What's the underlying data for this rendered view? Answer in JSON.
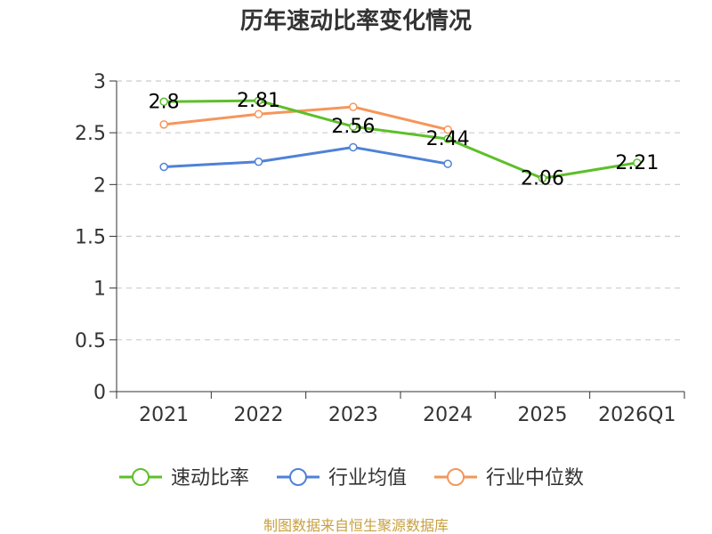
{
  "chart_data": {
    "type": "line",
    "title": "历年速动比率变化情况",
    "categories": [
      "2021",
      "2022",
      "2023",
      "2024",
      "2025",
      "2026Q1"
    ],
    "ylim": [
      0,
      3
    ],
    "yticks": [
      "0",
      "0.5",
      "1",
      "1.5",
      "2",
      "2.5",
      "3"
    ],
    "ytick_values": [
      0,
      0.5,
      1,
      1.5,
      2,
      2.5,
      3
    ],
    "grid": true,
    "series": [
      {
        "name": "速动比率",
        "color": "#5dbf2a",
        "values": [
          2.8,
          2.81,
          2.56,
          2.44,
          2.06,
          2.21
        ],
        "labels": [
          "2.8",
          "2.81",
          "2.56",
          "2.44",
          "2.06",
          "2.21"
        ]
      },
      {
        "name": "行业均值",
        "color": "#4f81d8",
        "values": [
          2.17,
          2.22,
          2.36,
          2.2,
          null,
          null
        ]
      },
      {
        "name": "行业中位数",
        "color": "#f5965a",
        "values": [
          2.58,
          2.68,
          2.75,
          2.53,
          null,
          null
        ]
      }
    ],
    "legend_position": "bottom",
    "source": "制图数据来自恒生聚源数据库"
  }
}
